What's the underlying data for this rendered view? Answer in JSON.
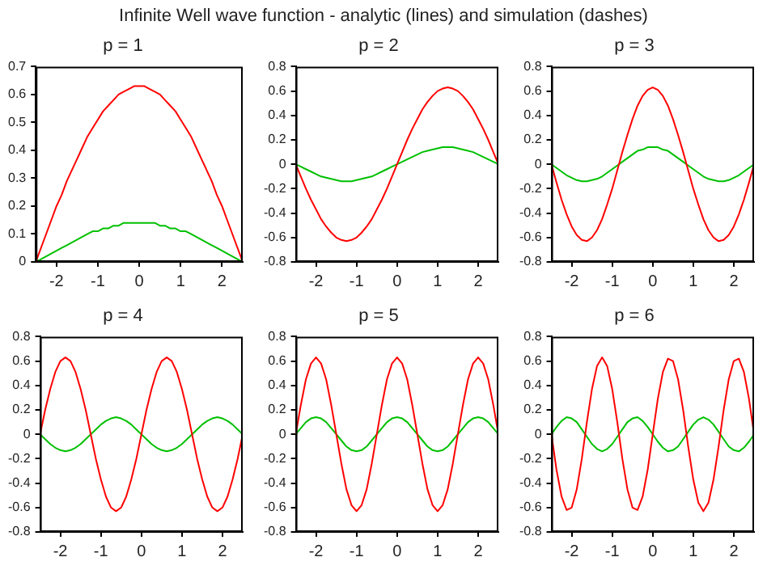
{
  "chart_data": [
    {
      "type": "line",
      "title": "p = 1",
      "annotations": [
        "Infinite Well wave function - analytic (lines) and simulation (dashes)"
      ],
      "x": [
        -2.5,
        -2.375,
        -2.25,
        -2.125,
        -2,
        -1.875,
        -1.75,
        -1.625,
        -1.5,
        -1.375,
        -1.25,
        -1.125,
        -1,
        -0.875,
        -0.75,
        -0.625,
        -0.5,
        -0.375,
        -0.25,
        -0.125,
        0,
        0.125,
        0.25,
        0.375,
        0.5,
        0.625,
        0.75,
        0.875,
        1,
        1.125,
        1.25,
        1.375,
        1.5,
        1.625,
        1.75,
        1.875,
        2,
        2.125,
        2.25,
        2.375,
        2.5
      ],
      "xlim": [
        -2.5,
        2.5
      ],
      "xticks": [
        -2,
        -1,
        0,
        1,
        2
      ],
      "ylim": [
        0,
        0.7
      ],
      "yticks": [
        0,
        0.1,
        0.2,
        0.3,
        0.4,
        0.5,
        0.6,
        0.7
      ],
      "series": [
        {
          "color": "#ff0000",
          "values": [
            0,
            0.05,
            0.1,
            0.15,
            0.2,
            0.24,
            0.29,
            0.33,
            0.37,
            0.41,
            0.45,
            0.48,
            0.51,
            0.54,
            0.56,
            0.58,
            0.6,
            0.61,
            0.62,
            0.63,
            0.63,
            0.63,
            0.62,
            0.61,
            0.6,
            0.58,
            0.56,
            0.54,
            0.51,
            0.48,
            0.45,
            0.41,
            0.37,
            0.33,
            0.29,
            0.24,
            0.2,
            0.15,
            0.1,
            0.05,
            0
          ]
        },
        {
          "color": "#00c000",
          "values": [
            0,
            0.01,
            0.02,
            0.03,
            0.04,
            0.05,
            0.06,
            0.07,
            0.08,
            0.09,
            0.1,
            0.11,
            0.11,
            0.12,
            0.12,
            0.13,
            0.13,
            0.14,
            0.14,
            0.14,
            0.14,
            0.14,
            0.14,
            0.14,
            0.13,
            0.13,
            0.12,
            0.12,
            0.11,
            0.11,
            0.1,
            0.09,
            0.08,
            0.07,
            0.06,
            0.05,
            0.04,
            0.03,
            0.02,
            0.01,
            0
          ]
        }
      ]
    },
    {
      "type": "line",
      "title": "p = 2",
      "x": [
        -2.5,
        -2.375,
        -2.25,
        -2.125,
        -2,
        -1.875,
        -1.75,
        -1.625,
        -1.5,
        -1.375,
        -1.25,
        -1.125,
        -1,
        -0.875,
        -0.75,
        -0.625,
        -0.5,
        -0.375,
        -0.25,
        -0.125,
        0,
        0.125,
        0.25,
        0.375,
        0.5,
        0.625,
        0.75,
        0.875,
        1,
        1.125,
        1.25,
        1.375,
        1.5,
        1.625,
        1.75,
        1.875,
        2,
        2.125,
        2.25,
        2.375,
        2.5
      ],
      "xlim": [
        -2.5,
        2.5
      ],
      "xticks": [
        -2,
        -1,
        0,
        1,
        2
      ],
      "ylim": [
        -0.8,
        0.8
      ],
      "yticks": [
        -0.8,
        -0.6,
        -0.4,
        -0.2,
        0,
        0.2,
        0.4,
        0.6,
        0.8
      ],
      "series": [
        {
          "color": "#ff0000",
          "values": [
            0,
            -0.1,
            -0.2,
            -0.29,
            -0.37,
            -0.45,
            -0.51,
            -0.56,
            -0.6,
            -0.62,
            -0.63,
            -0.62,
            -0.6,
            -0.56,
            -0.51,
            -0.45,
            -0.37,
            -0.29,
            -0.2,
            -0.1,
            0,
            0.1,
            0.2,
            0.29,
            0.37,
            0.45,
            0.51,
            0.56,
            0.6,
            0.62,
            0.63,
            0.62,
            0.6,
            0.56,
            0.51,
            0.45,
            0.37,
            0.29,
            0.2,
            0.1,
            0
          ]
        },
        {
          "color": "#00c000",
          "values": [
            0,
            -0.02,
            -0.04,
            -0.06,
            -0.08,
            -0.1,
            -0.11,
            -0.12,
            -0.13,
            -0.14,
            -0.14,
            -0.14,
            -0.13,
            -0.12,
            -0.11,
            -0.1,
            -0.08,
            -0.06,
            -0.04,
            -0.02,
            0,
            0.02,
            0.04,
            0.06,
            0.08,
            0.1,
            0.11,
            0.12,
            0.13,
            0.14,
            0.14,
            0.14,
            0.13,
            0.12,
            0.11,
            0.1,
            0.08,
            0.06,
            0.04,
            0.02,
            0
          ]
        }
      ]
    },
    {
      "type": "line",
      "title": "p = 3",
      "x": [
        -2.5,
        -2.375,
        -2.25,
        -2.125,
        -2,
        -1.875,
        -1.75,
        -1.625,
        -1.5,
        -1.375,
        -1.25,
        -1.125,
        -1,
        -0.875,
        -0.75,
        -0.625,
        -0.5,
        -0.375,
        -0.25,
        -0.125,
        0,
        0.125,
        0.25,
        0.375,
        0.5,
        0.625,
        0.75,
        0.875,
        1,
        1.125,
        1.25,
        1.375,
        1.5,
        1.625,
        1.75,
        1.875,
        2,
        2.125,
        2.25,
        2.375,
        2.5
      ],
      "xlim": [
        -2.5,
        2.5
      ],
      "xticks": [
        -2,
        -1,
        0,
        1,
        2
      ],
      "ylim": [
        -0.8,
        0.8
      ],
      "yticks": [
        -0.8,
        -0.6,
        -0.4,
        -0.2,
        0,
        0.2,
        0.4,
        0.6,
        0.8
      ],
      "series": [
        {
          "color": "#ff0000",
          "values": [
            0,
            -0.15,
            -0.29,
            -0.41,
            -0.51,
            -0.58,
            -0.62,
            -0.63,
            -0.6,
            -0.54,
            -0.45,
            -0.33,
            -0.2,
            -0.05,
            0.1,
            0.24,
            0.37,
            0.48,
            0.56,
            0.61,
            0.63,
            0.61,
            0.56,
            0.48,
            0.37,
            0.24,
            0.1,
            -0.05,
            -0.2,
            -0.33,
            -0.45,
            -0.54,
            -0.6,
            -0.63,
            -0.62,
            -0.58,
            -0.51,
            -0.41,
            -0.29,
            -0.15,
            0
          ]
        },
        {
          "color": "#00c000",
          "values": [
            0,
            -0.03,
            -0.06,
            -0.09,
            -0.11,
            -0.13,
            -0.14,
            -0.14,
            -0.13,
            -0.12,
            -0.1,
            -0.07,
            -0.04,
            -0.01,
            0.02,
            0.05,
            0.08,
            0.11,
            0.12,
            0.14,
            0.14,
            0.14,
            0.12,
            0.11,
            0.08,
            0.05,
            0.02,
            -0.01,
            -0.04,
            -0.07,
            -0.1,
            -0.12,
            -0.13,
            -0.14,
            -0.14,
            -0.13,
            -0.11,
            -0.09,
            -0.06,
            -0.03,
            0
          ]
        }
      ]
    },
    {
      "type": "line",
      "title": "p = 4",
      "x": [
        -2.5,
        -2.375,
        -2.25,
        -2.125,
        -2,
        -1.875,
        -1.75,
        -1.625,
        -1.5,
        -1.375,
        -1.25,
        -1.125,
        -1,
        -0.875,
        -0.75,
        -0.625,
        -0.5,
        -0.375,
        -0.25,
        -0.125,
        0,
        0.125,
        0.25,
        0.375,
        0.5,
        0.625,
        0.75,
        0.875,
        1,
        1.125,
        1.25,
        1.375,
        1.5,
        1.625,
        1.75,
        1.875,
        2,
        2.125,
        2.25,
        2.375,
        2.5
      ],
      "xlim": [
        -2.5,
        2.5
      ],
      "xticks": [
        -2,
        -1,
        0,
        1,
        2
      ],
      "ylim": [
        -0.8,
        0.8
      ],
      "yticks": [
        -0.8,
        -0.6,
        -0.4,
        -0.2,
        0,
        0.2,
        0.4,
        0.6,
        0.8
      ],
      "series": [
        {
          "color": "#ff0000",
          "values": [
            0,
            0.2,
            0.37,
            0.51,
            0.6,
            0.63,
            0.6,
            0.51,
            0.37,
            0.2,
            0,
            -0.2,
            -0.37,
            -0.51,
            -0.6,
            -0.63,
            -0.6,
            -0.51,
            -0.37,
            -0.2,
            0,
            0.2,
            0.37,
            0.51,
            0.6,
            0.63,
            0.6,
            0.51,
            0.37,
            0.2,
            0,
            -0.2,
            -0.37,
            -0.51,
            -0.6,
            -0.63,
            -0.6,
            -0.51,
            -0.37,
            -0.2,
            0
          ]
        },
        {
          "color": "#00c000",
          "values": [
            0,
            -0.04,
            -0.08,
            -0.11,
            -0.13,
            -0.14,
            -0.13,
            -0.11,
            -0.08,
            -0.04,
            0,
            0.04,
            0.08,
            0.11,
            0.13,
            0.14,
            0.13,
            0.11,
            0.08,
            0.04,
            0,
            -0.04,
            -0.08,
            -0.11,
            -0.13,
            -0.14,
            -0.13,
            -0.11,
            -0.08,
            -0.04,
            0,
            0.04,
            0.08,
            0.11,
            0.13,
            0.14,
            0.13,
            0.11,
            0.08,
            0.04,
            0
          ]
        }
      ]
    },
    {
      "type": "line",
      "title": "p = 5",
      "x": [
        -2.5,
        -2.375,
        -2.25,
        -2.125,
        -2,
        -1.875,
        -1.75,
        -1.625,
        -1.5,
        -1.375,
        -1.25,
        -1.125,
        -1,
        -0.875,
        -0.75,
        -0.625,
        -0.5,
        -0.375,
        -0.25,
        -0.125,
        0,
        0.125,
        0.25,
        0.375,
        0.5,
        0.625,
        0.75,
        0.875,
        1,
        1.125,
        1.25,
        1.375,
        1.5,
        1.625,
        1.75,
        1.875,
        2,
        2.125,
        2.25,
        2.375,
        2.5
      ],
      "xlim": [
        -2.5,
        2.5
      ],
      "xticks": [
        -2,
        -1,
        0,
        1,
        2
      ],
      "ylim": [
        -0.8,
        0.8
      ],
      "yticks": [
        -0.8,
        -0.6,
        -0.4,
        -0.2,
        0,
        0.2,
        0.4,
        0.6,
        0.8
      ],
      "series": [
        {
          "color": "#ff0000",
          "values": [
            0,
            0.24,
            0.45,
            0.58,
            0.63,
            0.58,
            0.45,
            0.24,
            0,
            -0.24,
            -0.45,
            -0.58,
            -0.63,
            -0.58,
            -0.45,
            -0.24,
            0,
            0.24,
            0.45,
            0.58,
            0.63,
            0.58,
            0.45,
            0.24,
            0,
            -0.24,
            -0.45,
            -0.58,
            -0.63,
            -0.58,
            -0.45,
            -0.24,
            0,
            0.24,
            0.45,
            0.58,
            0.63,
            0.58,
            0.45,
            0.24,
            0
          ]
        },
        {
          "color": "#00c000",
          "values": [
            0,
            0.05,
            0.1,
            0.13,
            0.14,
            0.13,
            0.1,
            0.05,
            0,
            -0.05,
            -0.1,
            -0.13,
            -0.14,
            -0.13,
            -0.1,
            -0.05,
            0,
            0.05,
            0.1,
            0.13,
            0.14,
            0.13,
            0.1,
            0.05,
            0,
            -0.05,
            -0.1,
            -0.13,
            -0.14,
            -0.13,
            -0.1,
            -0.05,
            0,
            0.05,
            0.1,
            0.13,
            0.14,
            0.13,
            0.1,
            0.05,
            0
          ]
        }
      ]
    },
    {
      "type": "line",
      "title": "p = 6",
      "x": [
        -2.5,
        -2.375,
        -2.25,
        -2.125,
        -2,
        -1.875,
        -1.75,
        -1.625,
        -1.5,
        -1.375,
        -1.25,
        -1.125,
        -1,
        -0.875,
        -0.75,
        -0.625,
        -0.5,
        -0.375,
        -0.25,
        -0.125,
        0,
        0.125,
        0.25,
        0.375,
        0.5,
        0.625,
        0.75,
        0.875,
        1,
        1.125,
        1.25,
        1.375,
        1.5,
        1.625,
        1.75,
        1.875,
        2,
        2.125,
        2.25,
        2.375,
        2.5
      ],
      "xlim": [
        -2.5,
        2.5
      ],
      "xticks": [
        -2,
        -1,
        0,
        1,
        2
      ],
      "ylim": [
        -0.8,
        0.8
      ],
      "yticks": [
        -0.8,
        -0.6,
        -0.4,
        -0.2,
        0,
        0.2,
        0.4,
        0.6,
        0.8
      ],
      "series": [
        {
          "color": "#ff0000",
          "values": [
            0,
            -0.29,
            -0.51,
            -0.62,
            -0.6,
            -0.45,
            -0.2,
            0.1,
            0.37,
            0.56,
            0.63,
            0.56,
            0.37,
            0.1,
            -0.2,
            -0.45,
            -0.6,
            -0.62,
            -0.51,
            -0.29,
            0,
            0.29,
            0.51,
            0.62,
            0.6,
            0.45,
            0.2,
            -0.1,
            -0.37,
            -0.56,
            -0.63,
            -0.56,
            -0.37,
            -0.1,
            0.2,
            0.45,
            0.6,
            0.62,
            0.51,
            0.29,
            0
          ]
        },
        {
          "color": "#00c000",
          "values": [
            0,
            0.06,
            0.11,
            0.14,
            0.13,
            0.1,
            0.04,
            -0.02,
            -0.08,
            -0.12,
            -0.14,
            -0.12,
            -0.08,
            -0.02,
            0.04,
            0.1,
            0.13,
            0.14,
            0.11,
            0.06,
            0,
            -0.06,
            -0.11,
            -0.14,
            -0.13,
            -0.1,
            -0.04,
            0.02,
            0.08,
            0.12,
            0.14,
            0.12,
            0.08,
            0.02,
            -0.04,
            -0.1,
            -0.13,
            -0.14,
            -0.11,
            -0.06,
            0
          ]
        }
      ]
    }
  ]
}
